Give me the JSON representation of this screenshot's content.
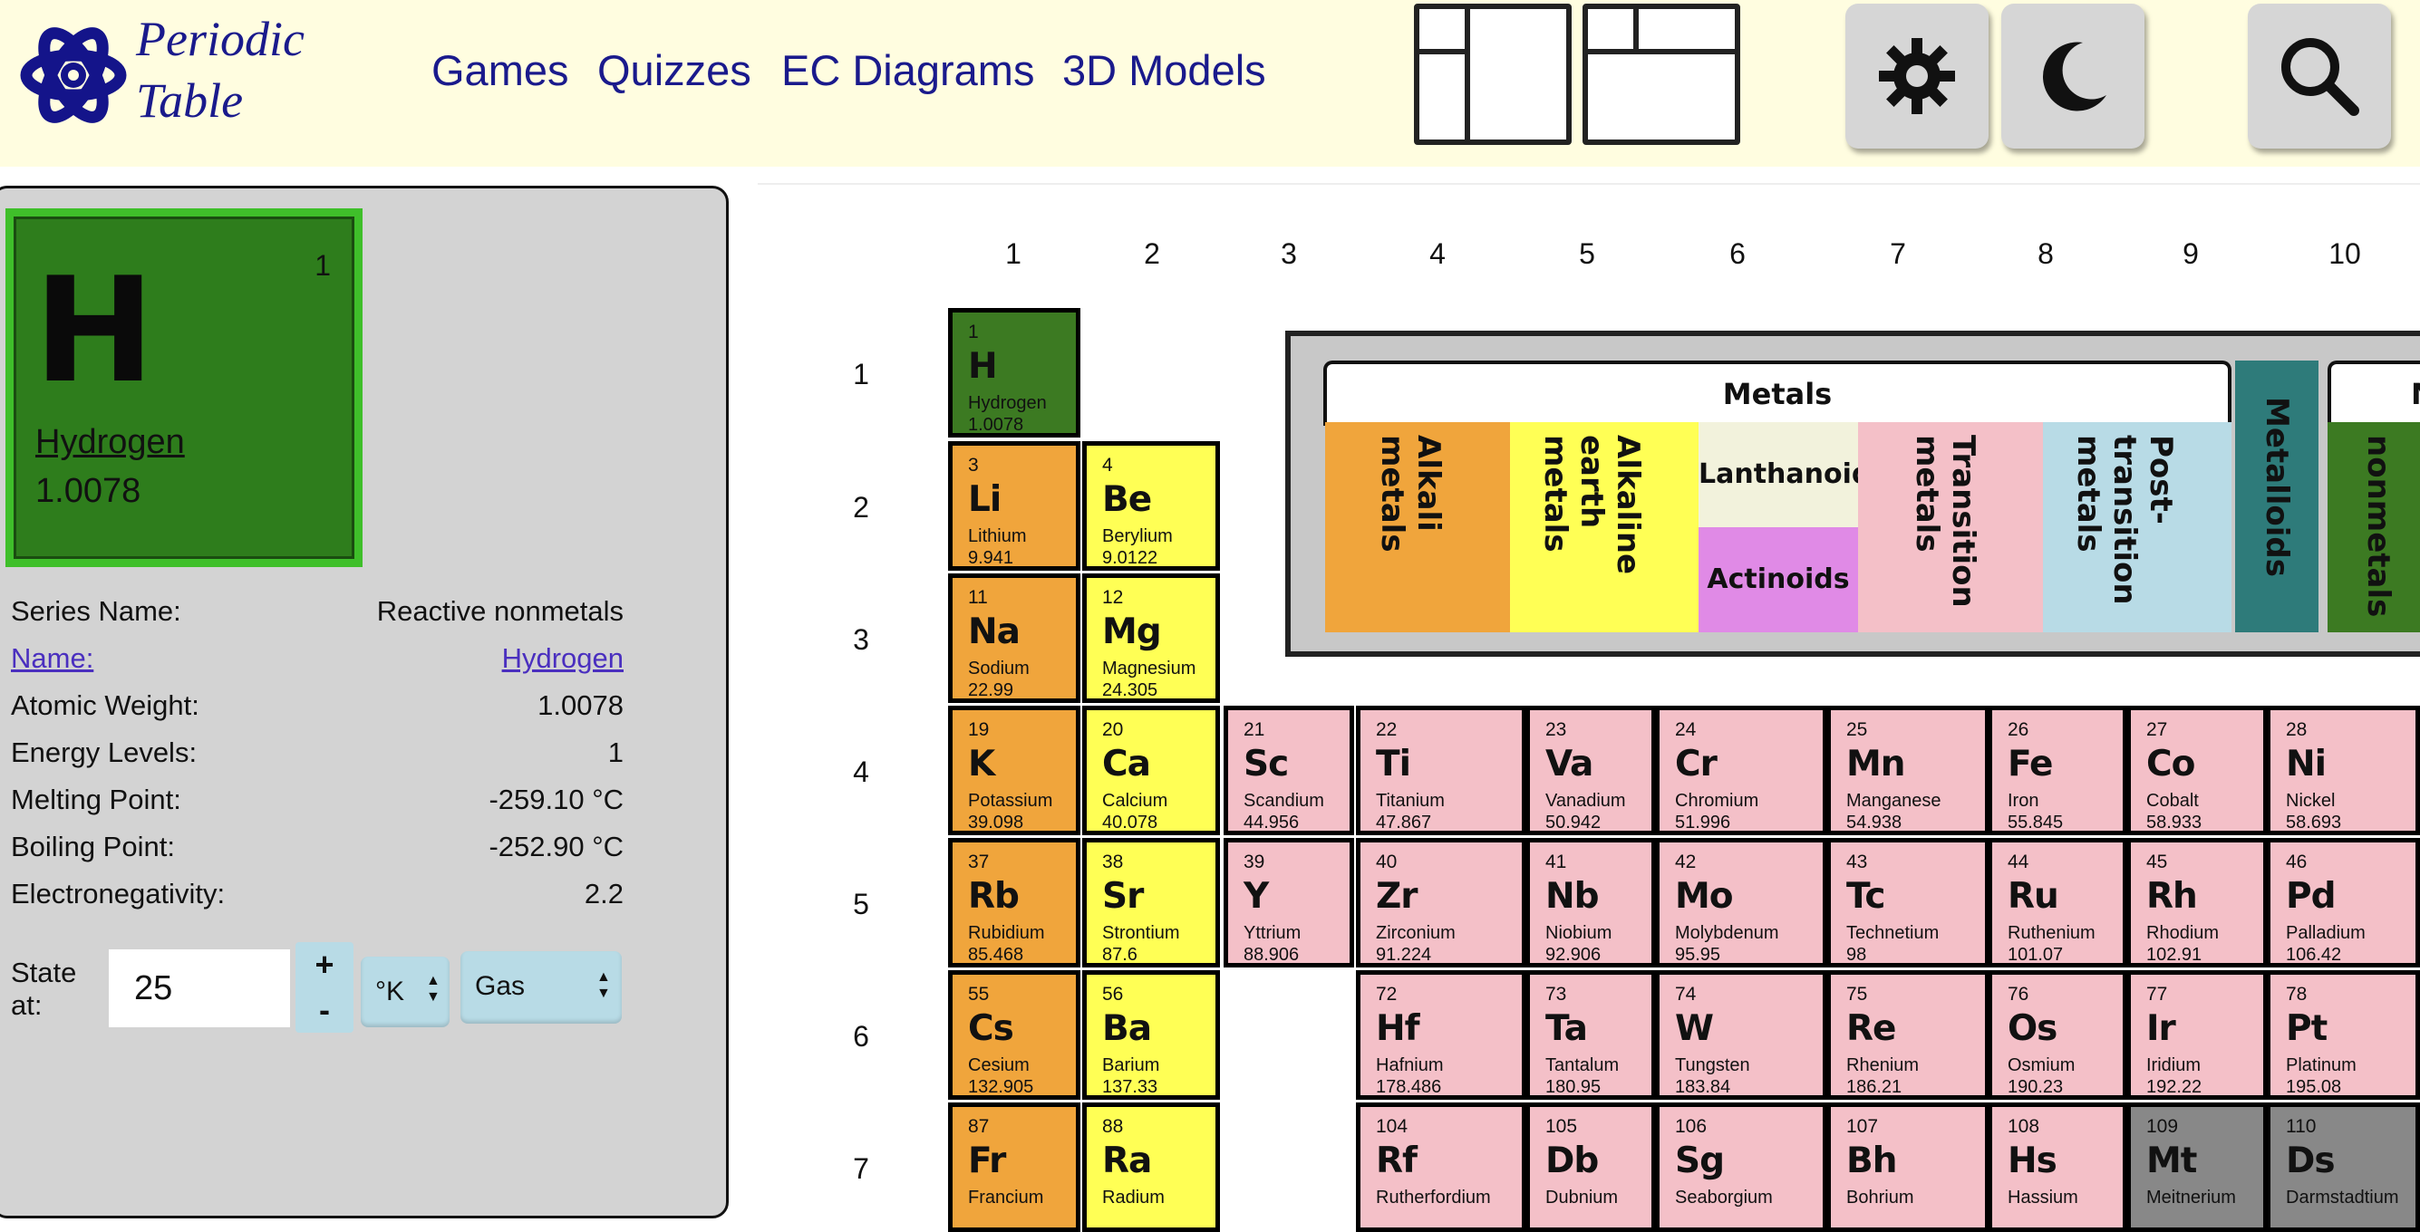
{
  "header": {
    "logo_line1": "Periodic",
    "logo_line2": "Table",
    "nav": [
      "Games",
      "Quizzes",
      "EC Diagrams",
      "3D Models"
    ]
  },
  "icons": {
    "logo": "atom-icon",
    "layout1": "layout-sidebar-icon",
    "layout2": "layout-grid-icon",
    "light": "sun-icon",
    "dark": "moon-icon",
    "search": "search-icon"
  },
  "selected": {
    "number": "1",
    "symbol": "H",
    "name": "Hydrogen",
    "weight": "1.0078"
  },
  "props": [
    {
      "label": "Series Name:",
      "value": "Reactive nonmetals"
    },
    {
      "label": "Name:",
      "value": "Hydrogen"
    },
    {
      "label": "Atomic Weight:",
      "value": "1.0078"
    },
    {
      "label": "Energy Levels:",
      "value": "1"
    },
    {
      "label": "Melting Point:",
      "value": "-259.10 °C"
    },
    {
      "label": "Boiling Point:",
      "value": "-252.90 °C"
    },
    {
      "label": "Electronegativity:",
      "value": "2.2"
    }
  ],
  "state": {
    "label": "State at:",
    "temp": "25",
    "plus": "+",
    "minus": "-",
    "unit": "°K",
    "phase": "Gas"
  },
  "table": {
    "groups": [
      "1",
      "2",
      "3",
      "4",
      "5",
      "6",
      "7",
      "8",
      "9",
      "10"
    ],
    "periods": [
      "1",
      "2",
      "3",
      "4",
      "5",
      "6",
      "7"
    ],
    "elements": [
      {
        "n": "1",
        "s": "H",
        "name": "Hydrogen",
        "w": "1.0078",
        "c": "nonmetal",
        "col": 0,
        "row": 0
      },
      {
        "n": "3",
        "s": "Li",
        "name": "Lithium",
        "w": "9.941",
        "c": "alkali",
        "col": 0,
        "row": 1
      },
      {
        "n": "4",
        "s": "Be",
        "name": "Berylium",
        "w": "9.0122",
        "c": "alkaline",
        "col": 1,
        "row": 1
      },
      {
        "n": "11",
        "s": "Na",
        "name": "Sodium",
        "w": "22.99",
        "c": "alkali",
        "col": 0,
        "row": 2
      },
      {
        "n": "12",
        "s": "Mg",
        "name": "Magnesium",
        "w": "24.305",
        "c": "alkaline",
        "col": 1,
        "row": 2
      },
      {
        "n": "19",
        "s": "K",
        "name": "Potassium",
        "w": "39.098",
        "c": "alkali",
        "col": 0,
        "row": 3
      },
      {
        "n": "20",
        "s": "Ca",
        "name": "Calcium",
        "w": "40.078",
        "c": "alkaline",
        "col": 1,
        "row": 3
      },
      {
        "n": "21",
        "s": "Sc",
        "name": "Scandium",
        "w": "44.956",
        "c": "transition",
        "col": 2,
        "row": 3
      },
      {
        "n": "22",
        "s": "Ti",
        "name": "Titanium",
        "w": "47.867",
        "c": "transition",
        "col": 3,
        "row": 3
      },
      {
        "n": "23",
        "s": "Va",
        "name": "Vanadium",
        "w": "50.942",
        "c": "transition",
        "col": 4,
        "row": 3
      },
      {
        "n": "24",
        "s": "Cr",
        "name": "Chromium",
        "w": "51.996",
        "c": "transition",
        "col": 5,
        "row": 3
      },
      {
        "n": "25",
        "s": "Mn",
        "name": "Manganese",
        "w": "54.938",
        "c": "transition",
        "col": 6,
        "row": 3
      },
      {
        "n": "26",
        "s": "Fe",
        "name": "Iron",
        "w": "55.845",
        "c": "transition",
        "col": 7,
        "row": 3
      },
      {
        "n": "27",
        "s": "Co",
        "name": "Cobalt",
        "w": "58.933",
        "c": "transition",
        "col": 8,
        "row": 3
      },
      {
        "n": "28",
        "s": "Ni",
        "name": "Nickel",
        "w": "58.693",
        "c": "transition",
        "col": 9,
        "row": 3
      },
      {
        "n": "37",
        "s": "Rb",
        "name": "Rubidium",
        "w": "85.468",
        "c": "alkali",
        "col": 0,
        "row": 4
      },
      {
        "n": "38",
        "s": "Sr",
        "name": "Strontium",
        "w": "87.6",
        "c": "alkaline",
        "col": 1,
        "row": 4
      },
      {
        "n": "39",
        "s": "Y",
        "name": "Yttrium",
        "w": "88.906",
        "c": "transition",
        "col": 2,
        "row": 4
      },
      {
        "n": "40",
        "s": "Zr",
        "name": "Zirconium",
        "w": "91.224",
        "c": "transition",
        "col": 3,
        "row": 4
      },
      {
        "n": "41",
        "s": "Nb",
        "name": "Niobium",
        "w": "92.906",
        "c": "transition",
        "col": 4,
        "row": 4
      },
      {
        "n": "42",
        "s": "Mo",
        "name": "Molybdenum",
        "w": "95.95",
        "c": "transition",
        "col": 5,
        "row": 4
      },
      {
        "n": "43",
        "s": "Tc",
        "name": "Technetium",
        "w": "98",
        "c": "transition",
        "col": 6,
        "row": 4
      },
      {
        "n": "44",
        "s": "Ru",
        "name": "Ruthenium",
        "w": "101.07",
        "c": "transition",
        "col": 7,
        "row": 4
      },
      {
        "n": "45",
        "s": "Rh",
        "name": "Rhodium",
        "w": "102.91",
        "c": "transition",
        "col": 8,
        "row": 4
      },
      {
        "n": "46",
        "s": "Pd",
        "name": "Palladium",
        "w": "106.42",
        "c": "transition",
        "col": 9,
        "row": 4
      },
      {
        "n": "55",
        "s": "Cs",
        "name": "Cesium",
        "w": "132.905",
        "c": "alkali",
        "col": 0,
        "row": 5
      },
      {
        "n": "56",
        "s": "Ba",
        "name": "Barium",
        "w": "137.33",
        "c": "alkaline",
        "col": 1,
        "row": 5
      },
      {
        "n": "72",
        "s": "Hf",
        "name": "Hafnium",
        "w": "178.486",
        "c": "transition",
        "col": 3,
        "row": 5
      },
      {
        "n": "73",
        "s": "Ta",
        "name": "Tantalum",
        "w": "180.95",
        "c": "transition",
        "col": 4,
        "row": 5
      },
      {
        "n": "74",
        "s": "W",
        "name": "Tungsten",
        "w": "183.84",
        "c": "transition",
        "col": 5,
        "row": 5
      },
      {
        "n": "75",
        "s": "Re",
        "name": "Rhenium",
        "w": "186.21",
        "c": "transition",
        "col": 6,
        "row": 5
      },
      {
        "n": "76",
        "s": "Os",
        "name": "Osmium",
        "w": "190.23",
        "c": "transition",
        "col": 7,
        "row": 5
      },
      {
        "n": "77",
        "s": "Ir",
        "name": "Iridium",
        "w": "192.22",
        "c": "transition",
        "col": 8,
        "row": 5
      },
      {
        "n": "78",
        "s": "Pt",
        "name": "Platinum",
        "w": "195.08",
        "c": "transition",
        "col": 9,
        "row": 5
      },
      {
        "n": "87",
        "s": "Fr",
        "name": "Francium",
        "w": "",
        "c": "alkali",
        "col": 0,
        "row": 6
      },
      {
        "n": "88",
        "s": "Ra",
        "name": "Radium",
        "w": "",
        "c": "alkaline",
        "col": 1,
        "row": 6
      },
      {
        "n": "104",
        "s": "Rf",
        "name": "Rutherfordium",
        "w": "",
        "c": "transition",
        "col": 3,
        "row": 6
      },
      {
        "n": "105",
        "s": "Db",
        "name": "Dubnium",
        "w": "",
        "c": "transition",
        "col": 4,
        "row": 6
      },
      {
        "n": "106",
        "s": "Sg",
        "name": "Seaborgium",
        "w": "",
        "c": "transition",
        "col": 5,
        "row": 6
      },
      {
        "n": "107",
        "s": "Bh",
        "name": "Bohrium",
        "w": "",
        "c": "transition",
        "col": 6,
        "row": 6
      },
      {
        "n": "108",
        "s": "Hs",
        "name": "Hassium",
        "w": "",
        "c": "transition",
        "col": 7,
        "row": 6
      },
      {
        "n": "109",
        "s": "Mt",
        "name": "Meitnerium",
        "w": "",
        "c": "unknown",
        "col": 8,
        "row": 6
      },
      {
        "n": "110",
        "s": "Ds",
        "name": "Darmstadtium",
        "w": "",
        "c": "unknown",
        "col": 9,
        "row": 6
      }
    ]
  },
  "legend": {
    "metals": "Metals",
    "nonmetals_partial": "No",
    "alkali": "Alkali metals",
    "alkaline": "Alkaline earth metals",
    "lanthanoids": "Lanthanoids",
    "actinoids": "Actinoids",
    "transition": "Transition metals",
    "post_transition": "Post-transition metals",
    "metalloids": "Metalloids",
    "nonmetals": "nonmetals"
  },
  "colors": {
    "alkali": "#f0a53c",
    "alkaline": "#ffff55",
    "transition": "#f4c0c8",
    "lanthanoid": "#f2f2dc",
    "actinoid": "#e08ae6",
    "post_transition": "#b8dbe6",
    "metalloid": "#2e7b7a",
    "nonmetal": "#3c7a22",
    "unknown": "#888888"
  }
}
